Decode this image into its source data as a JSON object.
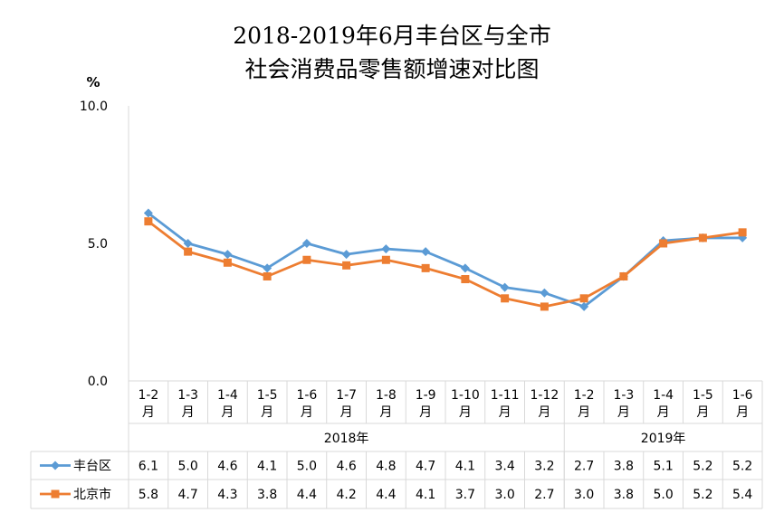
{
  "chart_data": {
    "type": "line",
    "title_lines": [
      "2018-2019年6月丰台区与全市",
      "社会消费品零售额增速对比图"
    ],
    "unit_label": "%",
    "y_ticks": [
      "10.0",
      "5.0",
      "0.0"
    ],
    "ylim": [
      0,
      10
    ],
    "grid": false,
    "legend": "data-table-left",
    "categories": [
      [
        "1-2",
        "月"
      ],
      [
        "1-3",
        "月"
      ],
      [
        "1-4",
        "月"
      ],
      [
        "1-5",
        "月"
      ],
      [
        "1-6",
        "月"
      ],
      [
        "1-7",
        "月"
      ],
      [
        "1-8",
        "月"
      ],
      [
        "1-9",
        "月"
      ],
      [
        "1-10",
        "月"
      ],
      [
        "1-11",
        "月"
      ],
      [
        "1-12",
        "月"
      ],
      [
        "1-2",
        "月"
      ],
      [
        "1-3",
        "月"
      ],
      [
        "1-4",
        "月"
      ],
      [
        "1-5",
        "月"
      ],
      [
        "1-6",
        "月"
      ]
    ],
    "groups": [
      {
        "label": "2018年",
        "count": 11
      },
      {
        "label": "2019年",
        "count": 5
      }
    ],
    "series": [
      {
        "name": "丰台区",
        "color": "#5B9BD5",
        "marker": "diamond",
        "values": [
          6.1,
          5.0,
          4.6,
          4.1,
          5.0,
          4.6,
          4.8,
          4.7,
          4.1,
          3.4,
          3.2,
          2.7,
          3.8,
          5.1,
          5.2,
          5.2
        ],
        "labels": [
          "6.1",
          "5.0",
          "4.6",
          "4.1",
          "5.0",
          "4.6",
          "4.8",
          "4.7",
          "4.1",
          "3.4",
          "3.2",
          "2.7",
          "3.8",
          "5.1",
          "5.2",
          "5.2"
        ]
      },
      {
        "name": "北京市",
        "color": "#ED7D31",
        "marker": "square",
        "values": [
          5.8,
          4.7,
          4.3,
          3.8,
          4.4,
          4.2,
          4.4,
          4.1,
          3.7,
          3.0,
          2.7,
          3.0,
          3.8,
          5.0,
          5.2,
          5.4
        ],
        "labels": [
          "5.8",
          "4.7",
          "4.3",
          "3.8",
          "4.4",
          "4.2",
          "4.4",
          "4.1",
          "3.7",
          "3.0",
          "2.7",
          "3.0",
          "3.8",
          "5.0",
          "5.2",
          "5.4"
        ]
      }
    ]
  }
}
